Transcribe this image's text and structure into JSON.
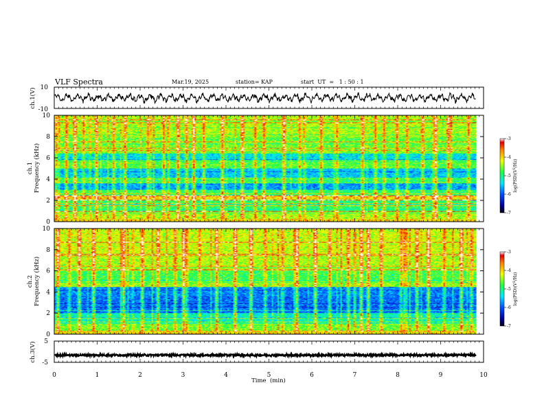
{
  "header": {
    "title": "VLF Spectra",
    "date": "Mar.19, 2025",
    "station": "station= KAP",
    "start": "start  UT  =   1 : 50 : 1"
  },
  "chart_data": [
    {
      "id": "ch1-waveform",
      "type": "line",
      "ylabel": "ch.1(V)",
      "ylim": [
        -10,
        10
      ],
      "yticks": [
        {
          "v": 10,
          "t": "10"
        },
        {
          "v": -10,
          "t": "-10"
        }
      ],
      "xlim": [
        0,
        10
      ],
      "note": "noisy oscillating voltage, roughly -5 to 5 V over 0–9.8 min"
    },
    {
      "id": "ch1-spectrogram",
      "type": "heatmap",
      "ylabel": "ch.1\nFrequency  (kHz)",
      "ylim": [
        0,
        10
      ],
      "yticks": [
        "0",
        "2",
        "4",
        "6",
        "8",
        "10"
      ],
      "xlim": [
        0,
        10
      ],
      "data_xmax": 9.82,
      "colorbar": {
        "label": "log(PSD)(V²/Hz)",
        "range": [
          -7,
          -3
        ],
        "ticks": [
          "-3",
          "-4",
          "-5",
          "-6",
          "-7"
        ]
      },
      "bands": [
        {
          "f": [
            0.0,
            1.0
          ],
          "v": -4.4
        },
        {
          "f": [
            1.0,
            2.0
          ],
          "v": -4.9
        },
        {
          "f": [
            2.0,
            2.5
          ],
          "v": -4.0
        },
        {
          "f": [
            2.5,
            3.0
          ],
          "v": -4.9
        },
        {
          "f": [
            3.0,
            3.6
          ],
          "v": -5.7
        },
        {
          "f": [
            3.6,
            4.1
          ],
          "v": -4.8
        },
        {
          "f": [
            4.1,
            5.0
          ],
          "v": -5.5
        },
        {
          "f": [
            5.0,
            5.8
          ],
          "v": -4.7
        },
        {
          "f": [
            5.8,
            6.5
          ],
          "v": -5.4
        },
        {
          "f": [
            6.5,
            8.0
          ],
          "v": -4.6
        },
        {
          "f": [
            8.0,
            10.0
          ],
          "v": -4.4
        }
      ],
      "impulse_times": [
        0.02,
        0.28,
        0.45,
        0.66,
        0.98,
        1.35,
        1.62,
        2.15,
        2.52,
        2.85,
        3.05,
        3.22,
        3.45,
        3.9,
        4.38,
        4.65,
        4.88,
        5.35,
        5.7,
        6.2,
        6.55,
        7.15,
        7.45,
        7.65,
        7.95,
        8.2,
        8.55,
        8.88,
        9.15,
        9.62
      ]
    },
    {
      "id": "ch2-spectrogram",
      "type": "heatmap",
      "ylabel": "ch.2\nFrequency  (kHz)",
      "ylim": [
        0,
        10
      ],
      "yticks": [
        "0",
        "2",
        "4",
        "6",
        "8",
        "10"
      ],
      "xlim": [
        0,
        10
      ],
      "data_xmax": 9.82,
      "colorbar": {
        "label": "log(PSD)(V²/Hz)",
        "range": [
          -7,
          -3
        ],
        "ticks": [
          "-3",
          "-4",
          "-5",
          "-6",
          "-7"
        ]
      },
      "bands": [
        {
          "f": [
            0.0,
            1.0
          ],
          "v": -4.6
        },
        {
          "f": [
            1.0,
            2.0
          ],
          "v": -5.2
        },
        {
          "f": [
            2.0,
            3.6
          ],
          "v": -5.9
        },
        {
          "f": [
            3.6,
            4.5
          ],
          "v": -5.8
        },
        {
          "f": [
            4.5,
            5.0
          ],
          "v": -4.5
        },
        {
          "f": [
            5.0,
            6.0
          ],
          "v": -4.8
        },
        {
          "f": [
            6.0,
            7.5
          ],
          "v": -4.4
        },
        {
          "f": [
            7.5,
            10.0
          ],
          "v": -4.3
        }
      ],
      "impulse_times": [
        0.05,
        0.32,
        0.55,
        0.9,
        1.25,
        1.6,
        2.05,
        2.4,
        2.8,
        3.0,
        3.08,
        3.35,
        3.75,
        4.2,
        4.55,
        4.9,
        5.3,
        5.62,
        6.05,
        6.4,
        6.85,
        7.12,
        7.3,
        7.6,
        8.05,
        8.42,
        8.7,
        9.05,
        9.45,
        9.7
      ]
    },
    {
      "id": "ch3-waveform",
      "type": "line",
      "ylabel": "ch.3(V)",
      "ylim": [
        -5,
        5
      ],
      "yticks": [
        {
          "v": 5,
          "t": "5"
        },
        {
          "v": -5,
          "t": "-5"
        }
      ],
      "xlim": [
        0,
        10
      ],
      "note": "thick flat trace near -1.5 V over 0–9.8 min"
    }
  ],
  "x_axis": {
    "label": "Time  (min)",
    "ticks": [
      "0",
      "1",
      "2",
      "3",
      "4",
      "5",
      "6",
      "7",
      "8",
      "9",
      "10"
    ]
  }
}
